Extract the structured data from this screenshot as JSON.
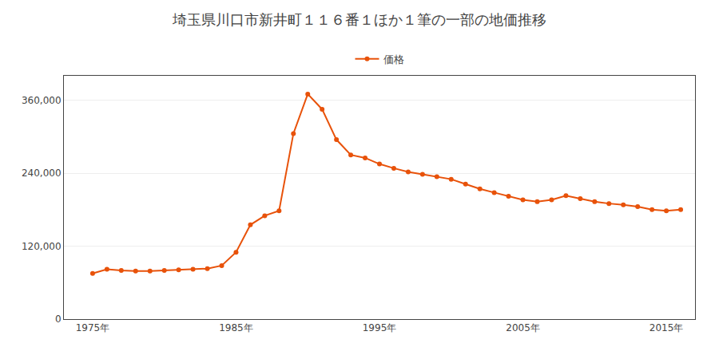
{
  "chart_data": {
    "type": "line",
    "title": "埼玉県川口市新井町１１６番１ほか１筆の一部の地価推移",
    "x": [
      1975,
      1976,
      1977,
      1978,
      1979,
      1980,
      1981,
      1982,
      1983,
      1984,
      1985,
      1986,
      1987,
      1988,
      1989,
      1990,
      1991,
      1992,
      1993,
      1994,
      1995,
      1996,
      1997,
      1998,
      1999,
      2000,
      2001,
      2002,
      2003,
      2004,
      2005,
      2006,
      2007,
      2008,
      2009,
      2010,
      2011,
      2012,
      2013,
      2014,
      2015,
      2016
    ],
    "series": [
      {
        "name": "価格",
        "color": "#e8520a",
        "marker": "circle",
        "values": [
          75000,
          82000,
          80000,
          79000,
          79000,
          80000,
          81000,
          82000,
          83000,
          88000,
          110000,
          155000,
          170000,
          178000,
          305000,
          370000,
          345000,
          295000,
          270000,
          265000,
          255000,
          248000,
          242000,
          238000,
          234000,
          230000,
          222000,
          214000,
          208000,
          202000,
          196000,
          193000,
          196000,
          203000,
          198000,
          193000,
          190000,
          188000,
          185000,
          180000,
          178000,
          180000
        ]
      }
    ],
    "xlim": [
      1973,
      2017
    ],
    "ylim": [
      0,
      400000
    ],
    "xticks": [
      {
        "value": 1975,
        "label": "1975年"
      },
      {
        "value": 1985,
        "label": "1985年"
      },
      {
        "value": 1995,
        "label": "1995年"
      },
      {
        "value": 2005,
        "label": "2005年"
      },
      {
        "value": 2015,
        "label": "2015年"
      }
    ],
    "yticks": [
      0,
      {
        "value": 120000,
        "label": "120,000"
      },
      {
        "value": 240000,
        "label": "240,000"
      },
      {
        "value": 360000,
        "label": "360,000"
      }
    ],
    "grid": "y",
    "legend": "top"
  }
}
